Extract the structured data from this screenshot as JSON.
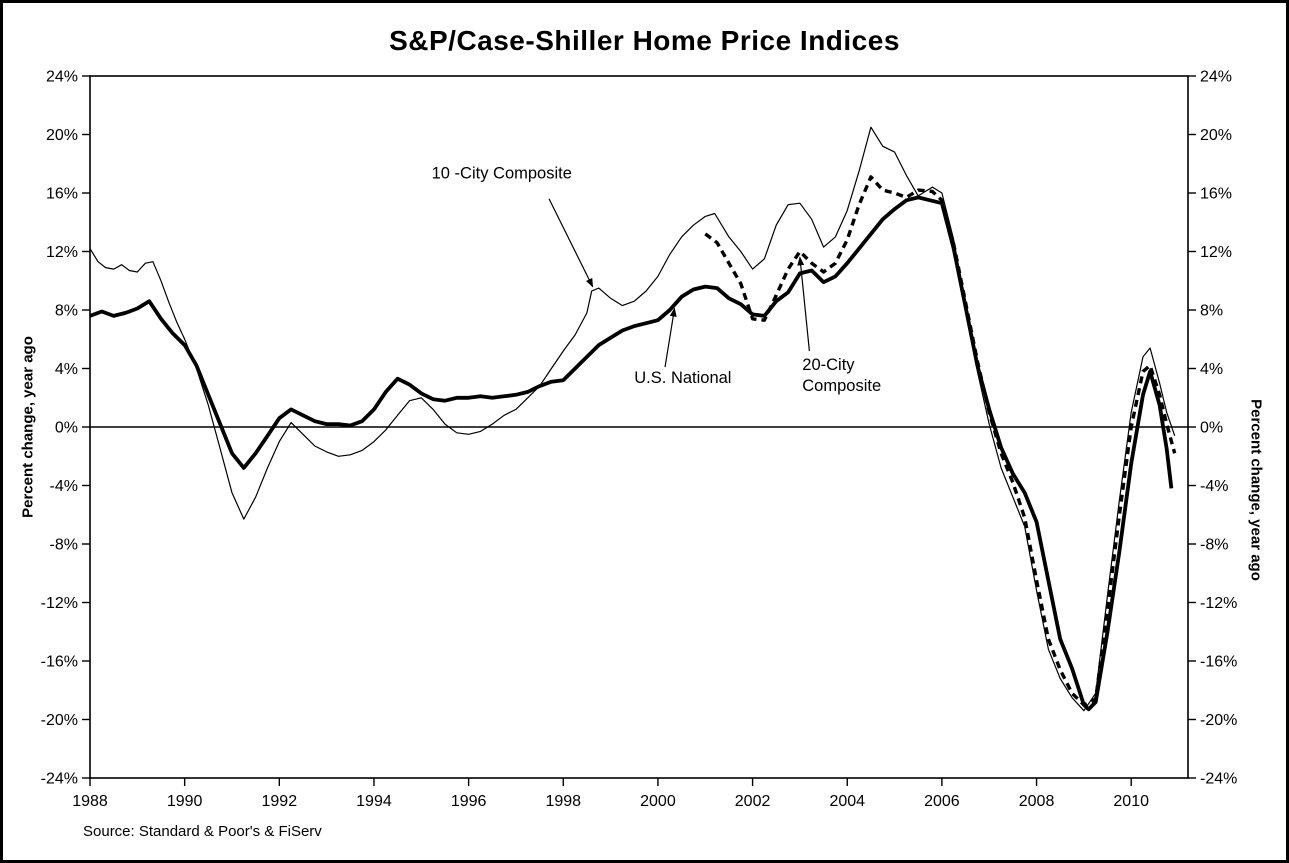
{
  "chart_data": {
    "type": "line",
    "title": "S&P/Case-Shiller Home Price Indices",
    "y_axis_label": "Percent change, year ago",
    "source": "Source: Standard & Poor's & FiServ",
    "xlim": [
      1988,
      2011.2
    ],
    "ylim": [
      -24,
      24
    ],
    "grid": false,
    "legend_position": "none (inline annotations with arrows)",
    "y_tick_values": [
      24,
      20,
      16,
      12,
      8,
      4,
      0,
      -4,
      -8,
      -12,
      -16,
      -20,
      -24
    ],
    "y_tick_labels": [
      "24%",
      "20%",
      "16%",
      "12%",
      "8%",
      "4%",
      "0%",
      "-4%",
      "-8%",
      "-12%",
      "-16%",
      "-20%",
      "-24%"
    ],
    "x_tick_values": [
      1988,
      1990,
      1992,
      1994,
      1996,
      1998,
      2000,
      2002,
      2004,
      2006,
      2008,
      2010
    ],
    "x_tick_labels": [
      "1988",
      "1990",
      "1992",
      "1994",
      "1996",
      "1998",
      "2000",
      "2002",
      "2004",
      "2006",
      "2008",
      "2010"
    ],
    "series": [
      {
        "name": "10-City Composite",
        "style": "thin-solid",
        "points": [
          [
            1988,
            12.2
          ],
          [
            1988.17,
            11.3
          ],
          [
            1988.33,
            10.9
          ],
          [
            1988.5,
            10.8
          ],
          [
            1988.67,
            11.1
          ],
          [
            1988.83,
            10.7
          ],
          [
            1989,
            10.6
          ],
          [
            1989.17,
            11.2
          ],
          [
            1989.33,
            11.3
          ],
          [
            1989.5,
            10
          ],
          [
            1989.67,
            8.5
          ],
          [
            1989.83,
            7.2
          ],
          [
            1990,
            6
          ],
          [
            1990.25,
            4
          ],
          [
            1990.5,
            1.5
          ],
          [
            1990.75,
            -1.5
          ],
          [
            1991,
            -4.5
          ],
          [
            1991.25,
            -6.3
          ],
          [
            1991.5,
            -4.8
          ],
          [
            1991.75,
            -2.8
          ],
          [
            1992,
            -1
          ],
          [
            1992.25,
            0.3
          ],
          [
            1992.5,
            -0.5
          ],
          [
            1992.75,
            -1.3
          ],
          [
            1993,
            -1.7
          ],
          [
            1993.25,
            -2
          ],
          [
            1993.5,
            -1.9
          ],
          [
            1993.75,
            -1.6
          ],
          [
            1994,
            -1
          ],
          [
            1994.25,
            -0.2
          ],
          [
            1994.5,
            0.8
          ],
          [
            1994.75,
            1.8
          ],
          [
            1995,
            2
          ],
          [
            1995.25,
            1.2
          ],
          [
            1995.5,
            0.2
          ],
          [
            1995.75,
            -0.4
          ],
          [
            1996,
            -0.5
          ],
          [
            1996.25,
            -0.3
          ],
          [
            1996.5,
            0.2
          ],
          [
            1996.75,
            0.8
          ],
          [
            1997,
            1.2
          ],
          [
            1997.25,
            2
          ],
          [
            1997.5,
            2.8
          ],
          [
            1997.75,
            4
          ],
          [
            1998,
            5.2
          ],
          [
            1998.25,
            6.3
          ],
          [
            1998.5,
            7.8
          ],
          [
            1998.6,
            9.3
          ],
          [
            1998.75,
            9.5
          ],
          [
            1999,
            8.8
          ],
          [
            1999.25,
            8.3
          ],
          [
            1999.5,
            8.6
          ],
          [
            1999.75,
            9.3
          ],
          [
            2000,
            10.3
          ],
          [
            2000.25,
            11.8
          ],
          [
            2000.5,
            13
          ],
          [
            2000.75,
            13.8
          ],
          [
            2001,
            14.4
          ],
          [
            2001.2,
            14.6
          ],
          [
            2001.5,
            13
          ],
          [
            2001.75,
            12
          ],
          [
            2002,
            10.8
          ],
          [
            2002.25,
            11.5
          ],
          [
            2002.5,
            13.8
          ],
          [
            2002.75,
            15.2
          ],
          [
            2003,
            15.3
          ],
          [
            2003.25,
            14.2
          ],
          [
            2003.5,
            12.3
          ],
          [
            2003.75,
            13
          ],
          [
            2004,
            14.8
          ],
          [
            2004.25,
            17.5
          ],
          [
            2004.5,
            20.5
          ],
          [
            2004.75,
            19.2
          ],
          [
            2005,
            18.8
          ],
          [
            2005.25,
            17.2
          ],
          [
            2005.5,
            15.8
          ],
          [
            2005.8,
            16.4
          ],
          [
            2006,
            16
          ],
          [
            2006.25,
            12.8
          ],
          [
            2006.5,
            8.2
          ],
          [
            2006.75,
            3.8
          ],
          [
            2007,
            0.2
          ],
          [
            2007.25,
            -2.8
          ],
          [
            2007.5,
            -4.8
          ],
          [
            2007.75,
            -6.8
          ],
          [
            2008,
            -11.2
          ],
          [
            2008.25,
            -15.2
          ],
          [
            2008.5,
            -17.2
          ],
          [
            2008.75,
            -18.5
          ],
          [
            2009,
            -19.4
          ],
          [
            2009.25,
            -18.2
          ],
          [
            2009.5,
            -11.5
          ],
          [
            2009.75,
            -5
          ],
          [
            2010,
            1
          ],
          [
            2010.25,
            4.8
          ],
          [
            2010.4,
            5.4
          ],
          [
            2010.6,
            3
          ],
          [
            2010.75,
            1
          ],
          [
            2010.92,
            -0.6
          ]
        ]
      },
      {
        "name": "20-City Composite",
        "style": "dashed",
        "points": [
          [
            2001,
            13.2
          ],
          [
            2001.25,
            12.6
          ],
          [
            2001.5,
            11.2
          ],
          [
            2001.75,
            9.8
          ],
          [
            2002,
            7.4
          ],
          [
            2002.25,
            7.3
          ],
          [
            2002.5,
            9
          ],
          [
            2002.75,
            10.8
          ],
          [
            2003,
            12
          ],
          [
            2003.25,
            11.2
          ],
          [
            2003.5,
            10.6
          ],
          [
            2003.75,
            11.2
          ],
          [
            2004,
            12.8
          ],
          [
            2004.25,
            15.2
          ],
          [
            2004.5,
            17.1
          ],
          [
            2004.75,
            16.2
          ],
          [
            2005,
            16
          ],
          [
            2005.25,
            15.7
          ],
          [
            2005.5,
            16.2
          ],
          [
            2005.8,
            16.1
          ],
          [
            2006,
            15.5
          ],
          [
            2006.25,
            12.5
          ],
          [
            2006.5,
            8.5
          ],
          [
            2006.75,
            4.5
          ],
          [
            2007,
            1
          ],
          [
            2007.25,
            -1.8
          ],
          [
            2007.5,
            -3.8
          ],
          [
            2007.75,
            -6.2
          ],
          [
            2008,
            -10.5
          ],
          [
            2008.25,
            -14.5
          ],
          [
            2008.5,
            -16.6
          ],
          [
            2008.75,
            -18.2
          ],
          [
            2009,
            -19
          ],
          [
            2009.25,
            -18.6
          ],
          [
            2009.5,
            -12.5
          ],
          [
            2009.75,
            -6
          ],
          [
            2010,
            0
          ],
          [
            2010.25,
            3.8
          ],
          [
            2010.4,
            4.2
          ],
          [
            2010.6,
            2.2
          ],
          [
            2010.75,
            0.2
          ],
          [
            2010.92,
            -1.8
          ]
        ]
      },
      {
        "name": "U.S. National",
        "style": "thick-solid",
        "points": [
          [
            1988,
            7.6
          ],
          [
            1988.25,
            7.9
          ],
          [
            1988.5,
            7.6
          ],
          [
            1988.75,
            7.8
          ],
          [
            1989,
            8.1
          ],
          [
            1989.25,
            8.6
          ],
          [
            1989.5,
            7.4
          ],
          [
            1989.75,
            6.4
          ],
          [
            1990,
            5.6
          ],
          [
            1990.25,
            4.2
          ],
          [
            1990.5,
            2.2
          ],
          [
            1990.75,
            0.2
          ],
          [
            1991,
            -1.8
          ],
          [
            1991.25,
            -2.8
          ],
          [
            1991.5,
            -1.8
          ],
          [
            1991.75,
            -0.6
          ],
          [
            1992,
            0.6
          ],
          [
            1992.25,
            1.2
          ],
          [
            1992.5,
            0.8
          ],
          [
            1992.75,
            0.4
          ],
          [
            1993,
            0.2
          ],
          [
            1993.25,
            0.2
          ],
          [
            1993.5,
            0.1
          ],
          [
            1993.75,
            0.4
          ],
          [
            1994,
            1.2
          ],
          [
            1994.25,
            2.4
          ],
          [
            1994.5,
            3.3
          ],
          [
            1994.75,
            2.9
          ],
          [
            1995,
            2.3
          ],
          [
            1995.25,
            1.9
          ],
          [
            1995.5,
            1.8
          ],
          [
            1995.75,
            2
          ],
          [
            1996,
            2
          ],
          [
            1996.25,
            2.1
          ],
          [
            1996.5,
            2
          ],
          [
            1996.75,
            2.1
          ],
          [
            1997,
            2.2
          ],
          [
            1997.25,
            2.4
          ],
          [
            1997.5,
            2.8
          ],
          [
            1997.75,
            3.1
          ],
          [
            1998,
            3.2
          ],
          [
            1998.25,
            4
          ],
          [
            1998.5,
            4.8
          ],
          [
            1998.75,
            5.6
          ],
          [
            1999,
            6.1
          ],
          [
            1999.25,
            6.6
          ],
          [
            1999.5,
            6.9
          ],
          [
            1999.75,
            7.1
          ],
          [
            2000,
            7.3
          ],
          [
            2000.25,
            8
          ],
          [
            2000.5,
            8.9
          ],
          [
            2000.75,
            9.4
          ],
          [
            2001,
            9.6
          ],
          [
            2001.25,
            9.5
          ],
          [
            2001.5,
            8.8
          ],
          [
            2001.75,
            8.4
          ],
          [
            2002,
            7.7
          ],
          [
            2002.25,
            7.6
          ],
          [
            2002.5,
            8.6
          ],
          [
            2002.75,
            9.2
          ],
          [
            2003,
            10.5
          ],
          [
            2003.25,
            10.7
          ],
          [
            2003.5,
            9.9
          ],
          [
            2003.75,
            10.3
          ],
          [
            2004,
            11.2
          ],
          [
            2004.25,
            12.2
          ],
          [
            2004.5,
            13.2
          ],
          [
            2004.75,
            14.2
          ],
          [
            2005,
            14.9
          ],
          [
            2005.25,
            15.5
          ],
          [
            2005.5,
            15.7
          ],
          [
            2005.75,
            15.5
          ],
          [
            2006,
            15.3
          ],
          [
            2006.25,
            12.2
          ],
          [
            2006.5,
            8.2
          ],
          [
            2006.75,
            4.2
          ],
          [
            2007,
            1.2
          ],
          [
            2007.25,
            -1.4
          ],
          [
            2007.5,
            -3.2
          ],
          [
            2007.75,
            -4.5
          ],
          [
            2008,
            -6.5
          ],
          [
            2008.25,
            -10.5
          ],
          [
            2008.5,
            -14.5
          ],
          [
            2008.75,
            -16.5
          ],
          [
            2009,
            -19
          ],
          [
            2009.1,
            -19.3
          ],
          [
            2009.25,
            -18.8
          ],
          [
            2009.5,
            -14
          ],
          [
            2009.75,
            -8.5
          ],
          [
            2010,
            -2.5
          ],
          [
            2010.25,
            2.2
          ],
          [
            2010.4,
            3.8
          ],
          [
            2010.6,
            1.5
          ],
          [
            2010.75,
            -1.5
          ],
          [
            2010.85,
            -4.2
          ]
        ]
      }
    ],
    "annotations": [
      {
        "lines": [
          "10 -City Composite"
        ],
        "x": 1996.7,
        "y": 17.0,
        "anchor": "middle",
        "arrow": {
          "x1": 1997.7,
          "y1": 15.6,
          "x2": 1998.62,
          "y2": 9.6
        }
      },
      {
        "lines": [
          "U.S. National"
        ],
        "x": 1999.5,
        "y": 3.0,
        "anchor": "start",
        "arrow": {
          "x1": 2000.15,
          "y1": 4.1,
          "x2": 2000.35,
          "y2": 8.1
        }
      },
      {
        "lines": [
          "20-City",
          "Composite"
        ],
        "x": 2003.05,
        "y": 3.9,
        "anchor": "start",
        "arrow": {
          "x1": 2003.2,
          "y1": 5.2,
          "x2": 2003.0,
          "y2": 11.6
        }
      }
    ]
  }
}
